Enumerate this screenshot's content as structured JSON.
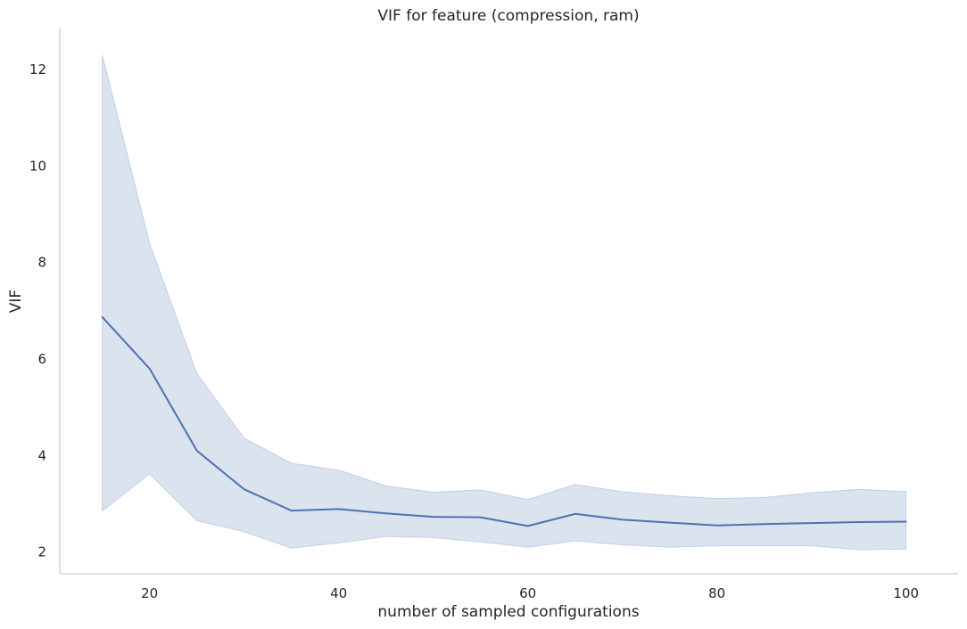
{
  "chart_data": {
    "type": "line",
    "title": "VIF for feature (compression, ram)",
    "xlabel": "number of sampled configurations",
    "ylabel": "VIF",
    "xlim": [
      10.5,
      105.5
    ],
    "ylim": [
      1.55,
      12.85
    ],
    "xticks": [
      20,
      40,
      60,
      80,
      100
    ],
    "yticks": [
      2,
      4,
      6,
      8,
      10,
      12
    ],
    "grid": false,
    "legend": "none",
    "series": [
      {
        "x": [
          15,
          20,
          25,
          30,
          35,
          40,
          45,
          50,
          55,
          60,
          65,
          70,
          75,
          80,
          85,
          90,
          95,
          100
        ],
        "values": [
          6.87,
          5.8,
          4.1,
          3.3,
          2.86,
          2.89,
          2.8,
          2.73,
          2.72,
          2.54,
          2.79,
          2.67,
          2.61,
          2.55,
          2.58,
          2.6,
          2.62,
          2.63
        ],
        "lower": [
          2.85,
          3.62,
          2.65,
          2.42,
          2.08,
          2.19,
          2.32,
          2.3,
          2.21,
          2.1,
          2.23,
          2.15,
          2.1,
          2.13,
          2.13,
          2.13,
          2.05,
          2.06
        ],
        "upper": [
          12.3,
          8.4,
          5.7,
          4.36,
          3.84,
          3.7,
          3.37,
          3.24,
          3.29,
          3.09,
          3.4,
          3.25,
          3.17,
          3.11,
          3.13,
          3.23,
          3.3,
          3.25
        ]
      }
    ],
    "colors": {
      "line": "#4c72b0",
      "band": "#4c72b0",
      "axis": "#cccccc",
      "text": "#262626"
    }
  }
}
